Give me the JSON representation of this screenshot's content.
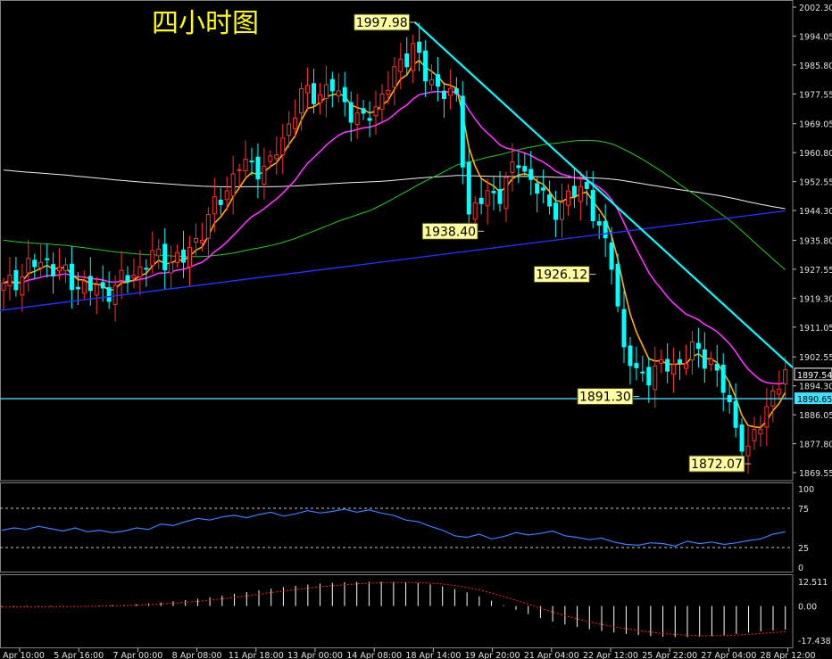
{
  "chart_data": {
    "type": "candlestick",
    "title": "四小时图",
    "price_axis": {
      "ylim": [
        1866.0,
        2006.0
      ],
      "ticks": [
        "2002.30",
        "1994.05",
        "1985.80",
        "1977.55",
        "1969.05",
        "1960.80",
        "1952.55",
        "1944.30",
        "1935.80",
        "1927.55",
        "1919.30",
        "1911.05",
        "1902.55",
        "1894.30",
        "1886.05",
        "1877.80",
        "1869.55"
      ],
      "current_price": "1897.54",
      "hline_price": "1890.65"
    },
    "x_ticks": [
      "4 Apr 10:00",
      "5 Apr 16:00",
      "7 Apr 00:00",
      "8 Apr 08:00",
      "11 Apr 18:00",
      "13 Apr 00:00",
      "14 Apr 08:00",
      "18 Apr 14:00",
      "19 Apr 20:00",
      "21 Apr 04:00",
      "22 Apr 12:00",
      "25 Apr 22:00",
      "27 Apr 04:00",
      "28 Apr 12:00"
    ],
    "annotations": [
      {
        "label": "1997.98",
        "price": 1997.98,
        "bar": 66,
        "side": "left"
      },
      {
        "label": "1938.40",
        "price": 1938.4,
        "bar": 77,
        "side": "left"
      },
      {
        "label": "1926.12",
        "price": 1926.12,
        "bar": 95,
        "side": "left"
      },
      {
        "label": "1891.30",
        "price": 1891.3,
        "bar": 102,
        "side": "left"
      },
      {
        "label": "1872.07",
        "price": 1872.07,
        "bar": 120,
        "side": "left"
      }
    ],
    "key_points": [
      [
        0,
        1922
      ],
      [
        4,
        1928
      ],
      [
        7,
        1930
      ],
      [
        11,
        1924
      ],
      [
        16,
        1921
      ],
      [
        20,
        1925
      ],
      [
        24,
        1931
      ],
      [
        29,
        1930
      ],
      [
        34,
        1945
      ],
      [
        38,
        1957
      ],
      [
        43,
        1957
      ],
      [
        48,
        1977
      ],
      [
        53,
        1979
      ],
      [
        58,
        1969
      ],
      [
        62,
        1980
      ],
      [
        66,
        1992
      ],
      [
        68,
        1982
      ],
      [
        71,
        1979
      ],
      [
        73,
        1975
      ],
      [
        75,
        1944
      ],
      [
        77,
        1947
      ],
      [
        80,
        1950
      ],
      [
        83,
        1958
      ],
      [
        86,
        1951
      ],
      [
        88,
        1944
      ],
      [
        91,
        1948
      ],
      [
        94,
        1951
      ],
      [
        96,
        1938
      ],
      [
        98,
        1930
      ],
      [
        100,
        1905
      ],
      [
        102,
        1897
      ],
      [
        105,
        1899
      ],
      [
        108,
        1900
      ],
      [
        111,
        1904
      ],
      [
        114,
        1902
      ],
      [
        116,
        1893
      ],
      [
        118,
        1883
      ],
      [
        120,
        1875
      ],
      [
        122,
        1884
      ],
      [
        124,
        1893
      ],
      [
        126,
        1896
      ]
    ],
    "ema_fast_color": "#ffb000",
    "ema_mid_color": "#ff30ff",
    "sma_long_color": "#22cc22",
    "sma_200_color": "#f0f0f0",
    "trend_color": "#2030ff",
    "resistance_color": "#00ffff",
    "up_color": "#ff3030",
    "down_color": "#00ffff",
    "rsi": {
      "ticks": [
        "100",
        "75",
        "25",
        "0"
      ],
      "levels": [
        75,
        25
      ],
      "color": "#3a7cff",
      "values": [
        47,
        50,
        48,
        52,
        49,
        46,
        50,
        45,
        47,
        44,
        46,
        50,
        48,
        55,
        53,
        58,
        62,
        60,
        64,
        66,
        63,
        67,
        70,
        65,
        68,
        72,
        69,
        71,
        74,
        70,
        73,
        69,
        66,
        60,
        58,
        52,
        47,
        40,
        38,
        42,
        36,
        39,
        44,
        41,
        43,
        46,
        40,
        38,
        35,
        37,
        32,
        29,
        28,
        31,
        30,
        27,
        33,
        30,
        32,
        29,
        31,
        34,
        36,
        42,
        45
      ]
    },
    "osc": {
      "ticks": [
        "12.511",
        "0.00",
        "-17.438"
      ],
      "bars": [
        -0.5,
        -0.4,
        -0.3,
        -0.2,
        -0.3,
        -0.2,
        -0.1,
        0,
        0.2,
        0.4,
        0.6,
        0.9,
        1.3,
        1.8,
        2.4,
        3.0,
        3.7,
        4.5,
        5.3,
        6.2,
        7.1,
        8.0,
        8.8,
        9.6,
        10.3,
        10.9,
        11.4,
        11.8,
        12.1,
        12.3,
        12.4,
        12.4,
        12.3,
        12.1,
        11.7,
        11.0,
        10.0,
        8.6,
        6.9,
        4.9,
        2.7,
        0.4,
        -1.9,
        -4.1,
        -6.1,
        -7.9,
        -9.4,
        -10.7,
        -11.8,
        -12.7,
        -13.5,
        -14.2,
        -14.8,
        -15.3,
        -15.6,
        -15.8,
        -15.8,
        -15.6,
        -15.3,
        -14.8,
        -14.2,
        -13.5,
        -12.9,
        -12.4,
        -12.0
      ],
      "signal_color": "#ff2020",
      "bar_color": "#ffffff"
    }
  }
}
